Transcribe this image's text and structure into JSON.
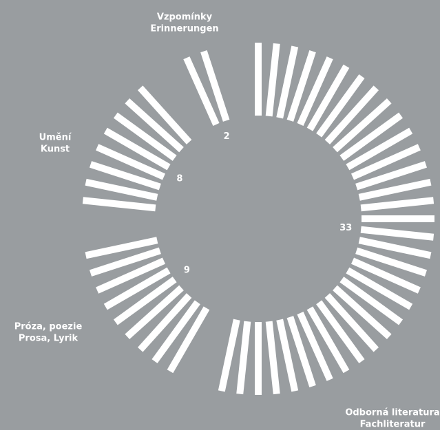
{
  "chart_data": {
    "type": "radial-count",
    "categories": [
      [
        "Odborná literatura",
        "Fachliteratur"
      ],
      [
        "Próza, poezie",
        "Prosa, Lyrik"
      ],
      [
        "Umění",
        "Kunst"
      ],
      [
        "Vzpomínky",
        "Erinnerungen"
      ]
    ],
    "values": [
      33,
      9,
      8,
      2
    ],
    "color": "#ffffff"
  }
}
